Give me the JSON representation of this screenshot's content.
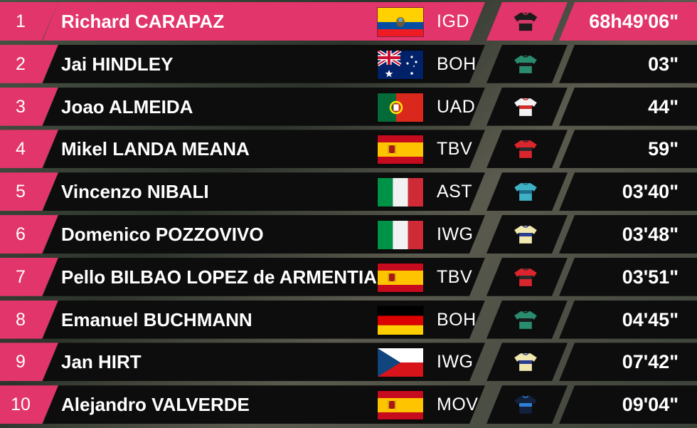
{
  "standings": [
    {
      "rank": "1",
      "name": "Richard CARAPAZ",
      "flag": "ecuador",
      "team": "IGD",
      "jersey_color": "#1c1c1c",
      "jersey_accent": "#d33a6a",
      "time": "68h49'06\""
    },
    {
      "rank": "2",
      "name": "Jai HINDLEY",
      "flag": "australia",
      "team": "BOH",
      "jersey_color": "#2a8c6e",
      "jersey_accent": "#1a1a1a",
      "time": "03\""
    },
    {
      "rank": "3",
      "name": "Joao ALMEIDA",
      "flag": "portugal",
      "team": "UAD",
      "jersey_color": "#f2f2f2",
      "jersey_accent": "#d22a2a",
      "time": "44\""
    },
    {
      "rank": "4",
      "name": "Mikel LANDA MEANA",
      "flag": "spain",
      "team": "TBV",
      "jersey_color": "#d9262e",
      "jersey_accent": "#2a2a2a",
      "time": "59\""
    },
    {
      "rank": "5",
      "name": "Vincenzo NIBALI",
      "flag": "italy",
      "team": "AST",
      "jersey_color": "#3fb1c4",
      "jersey_accent": "#1d6f8a",
      "time": "03'40\""
    },
    {
      "rank": "6",
      "name": "Domenico POZZOVIVO",
      "flag": "italy",
      "team": "IWG",
      "jersey_color": "#f1e8b0",
      "jersey_accent": "#2a3d8f",
      "time": "03'48\""
    },
    {
      "rank": "7",
      "name": "Pello BILBAO LOPEZ de ARMENTIA",
      "flag": "spain",
      "team": "TBV",
      "jersey_color": "#d9262e",
      "jersey_accent": "#2a2a2a",
      "time": "03'51\""
    },
    {
      "rank": "8",
      "name": "Emanuel BUCHMANN",
      "flag": "germany",
      "team": "BOH",
      "jersey_color": "#2a8c6e",
      "jersey_accent": "#1a1a1a",
      "time": "04'45\""
    },
    {
      "rank": "9",
      "name": "Jan HIRT",
      "flag": "czech",
      "team": "IWG",
      "jersey_color": "#f1e8b0",
      "jersey_accent": "#2a3d8f",
      "time": "07'42\""
    },
    {
      "rank": "10",
      "name": "Alejandro VALVERDE",
      "flag": "spain",
      "team": "MOV",
      "jersey_color": "#14213d",
      "jersey_accent": "#2f7fd6",
      "time": "09'04\""
    }
  ],
  "colors": {
    "accent": "#e2356b",
    "row_background": "#0d0d0d",
    "text": "#ffffff"
  }
}
